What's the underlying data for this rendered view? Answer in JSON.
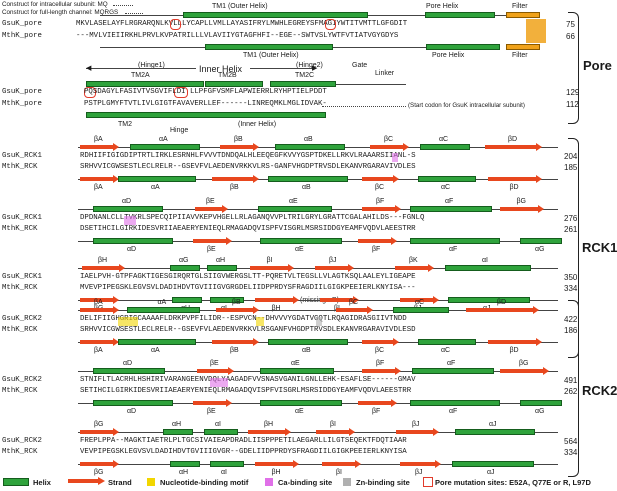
{
  "notes": {
    "intracellular": "Construct for intracellular subunit: MQ",
    "fulllength": "Construct for full-length channel: MQRGS"
  },
  "pore": {
    "labels": {
      "tm1_outer": "TM1 (Outer Helix)",
      "pore_helix": "Pore Helix",
      "filter": "Filter",
      "tm1_outer_b": "TM1 (Outer Helix)",
      "pore_helix_b": "Pore Helix",
      "filter_b": "Filter",
      "hinge1": "(Hinge1)",
      "inner_helix": "Inner Helix",
      "hinge2": "(Hinge2)",
      "gate": "Gate",
      "linker": "Linker",
      "tm2a": "TM2A",
      "tm2b": "TM2B",
      "tm2c": "TM2C",
      "tm2": "TM2",
      "hinge": "Hinge",
      "inner_helix_b": "(Inner Helix)",
      "start_codon": "(Start codon for GsuK intracellular subunit)",
      "section": "Pore"
    },
    "rows": [
      {
        "name": "GsuK_pore",
        "seq": "MKVLASELAYFLRGRARQNLKVLLLYCAPLLVMLLAYASIFRYLMWHLEGREYSFMAGIYWTITVMTTLGFGDIT",
        "num": "75"
      },
      {
        "name": "MthK_pore",
        "seq": "---MVLVIEIIRKHLPRVLKVPATRILLLVLAVIIYGTAGFHFI--EGE--SWTVSLYWTFVTIATVGYGDYS",
        "num": "66"
      },
      {
        "name": "GsuK_pore",
        "seq": "PQSDAGYLFASIVTVSGVIFLDI LLPFGFVSMFLAPWIERRLRYHPTIELPDDT",
        "num": "129"
      },
      {
        "name": "MthK_pore",
        "seq": "PSTPLGMYFTVTLIVLGIGTFAVAVERLLEF------LINREQMKLMGLIDVAK-",
        "num": "112"
      }
    ]
  },
  "rck1": {
    "section": "RCK1",
    "blocks": [
      {
        "rows": [
          {
            "name": "GsuK_RCK1",
            "seq": "RDHIIFIGIGDIPTRTLIRKLESRNHLFVVVTDNDQALHLEEQEGFKVVYGSPTDKELLRKVLRAAARSIIANL-S",
            "num": "204"
          },
          {
            "name": "MthK_RCK",
            "seq": "SRHVVICGWSESTLECLRELR--GSEVFVLAEDENVRKKVLRS-GANFVHGDPTRVSDLEKANVRGARAVIVDLES",
            "num": "185"
          }
        ],
        "top": [
          {
            "t": "βA"
          },
          {
            "t": "αA"
          },
          {
            "t": "βB"
          },
          {
            "t": "αB"
          },
          {
            "t": "βC"
          },
          {
            "t": "αC"
          },
          {
            "t": "βD"
          }
        ],
        "bot": [
          {
            "t": "βA"
          },
          {
            "t": "αA"
          },
          {
            "t": "βB"
          },
          {
            "t": "αB"
          },
          {
            "t": "βC"
          },
          {
            "t": "αC"
          },
          {
            "t": "βD"
          }
        ]
      },
      {
        "rows": [
          {
            "name": "GsuK_RCK1",
            "seq": "DPDNANLCLLTVKRLSPECQIPIIAVVKEPVHGELLRLAGANQVVPLTRILGRYLGRATTCGALAHILDS---FGNLQ",
            "num": "276"
          },
          {
            "name": "MthK_RCK",
            "seq": "DSETIHCILGIRKIDESVRIIAEAERYENIEQLRMAGADQVISPFVISGRLMSRSIDDGYEAMFVQDVLAEESTRR",
            "num": "261"
          }
        ],
        "top": [
          {
            "t": "αD"
          },
          {
            "t": "βE"
          },
          {
            "t": "αE"
          },
          {
            "t": "βF"
          },
          {
            "t": "αF"
          },
          {
            "t": "βG"
          }
        ],
        "bot": [
          {
            "t": "αD"
          },
          {
            "t": "βE"
          },
          {
            "t": "αE"
          },
          {
            "t": "βF"
          },
          {
            "t": "αF"
          },
          {
            "t": "αG"
          }
        ]
      },
      {
        "rows": [
          {
            "name": "GsuK_RCK1",
            "seq": "IAELPVH-GTPFAGKTIGESGIRQRTGLSIIGVWERGSLTT-PQRETVLTEGSLLVLAGTKSQLAALEYLIGEAPE",
            "num": "350"
          },
          {
            "name": "MthK_RCK",
            "seq": "MVEVPIPEGSKLEGVSVLDADIHDVTGVIIIGVGRGDELIIDPPRDYSFRAGDIILGIGKPEEIERLKNYISA---",
            "num": "334"
          }
        ],
        "top": [
          {
            "t": "βH"
          },
          {
            "t": "αG"
          },
          {
            "t": "αH"
          },
          {
            "t": "βI"
          },
          {
            "t": "βJ"
          },
          {
            "t": "βK"
          },
          {
            "t": "αI"
          }
        ],
        "bot": [
          {
            "t": "βG"
          },
          {
            "t": "αH"
          },
          {
            "t": "αI"
          },
          {
            "t": "βH"
          },
          {
            "t": "βI"
          },
          {
            "t": "βJ"
          },
          {
            "t": "αJ"
          }
        ]
      }
    ]
  },
  "rck2": {
    "section": "RCK2",
    "missing": "(missing αB)",
    "blocks": [
      {
        "rows": [
          {
            "name": "GsuK_RCK2",
            "seq": "DELIFIIGHGRIGCAAAAFLDRKPVPFILIDR--ESPVCN--DHVVVYGDATVGQTLRQAGIDRASGIIVTNDD",
            "num": "422"
          },
          {
            "name": "MthK_RCK",
            "seq": "SRHVVICGWSESTLECLRELR--GSEVFVLAEDENVRKKVLRSGANFVHGDPTRVSDLEKANVRGARAVIVDLESD",
            "num": "186"
          }
        ],
        "top": [
          {
            "t": "βA"
          },
          {
            "t": "αA"
          },
          {
            "t": "βB"
          },
          {
            "t": "βC"
          },
          {
            "t": "αC"
          },
          {
            "t": "βD"
          }
        ],
        "bot": [
          {
            "t": "βA"
          },
          {
            "t": "αA"
          },
          {
            "t": "βB"
          },
          {
            "t": "αB"
          },
          {
            "t": "βC"
          },
          {
            "t": "αC"
          },
          {
            "t": "βD"
          }
        ]
      },
      {
        "rows": [
          {
            "name": "GsuK_RCK2",
            "seq": "STNIFLTLACRHLHSHIRIVARANGEENVDQLYAAGADFVVSNASVGANILGNLLEHK-ESAFLSE------GMAV",
            "num": "491"
          },
          {
            "name": "MthK_RCK",
            "seq": "SETIHCILGIRKIDESVRIIAEAERYENIEQLRMAGADQVISPFVISGRLMSRSIDDGYEAMFVQDVLAEESTRR",
            "num": "262"
          }
        ],
        "top": [
          {
            "t": "αD"
          },
          {
            "t": "βE"
          },
          {
            "t": "αE"
          },
          {
            "t": "βF"
          },
          {
            "t": "αF"
          },
          {
            "t": "βG"
          }
        ],
        "bot": [
          {
            "t": "αD"
          },
          {
            "t": "βE"
          },
          {
            "t": "αE"
          },
          {
            "t": "βF"
          },
          {
            "t": "αF"
          },
          {
            "t": "αG"
          }
        ]
      },
      {
        "rows": [
          {
            "name": "GsuK_RCK2",
            "seq": "FREPLPPA--MAGKTIAETRLPLTGCSIVAIEAPDRADLIISPPPETILAEGARLLILGTSEQEKTFDQTIAAR",
            "num": "564"
          },
          {
            "name": "MthK_RCK",
            "seq": "VEVPIPEGSKLEGVSVLDADIHDVTGVIIIGVGR--GDELIIDPPRDYSFRAGDIILGIGKPEEIERLKNYISA",
            "num": "334"
          }
        ],
        "top": [
          {
            "t": "βG"
          },
          {
            "t": "αH"
          },
          {
            "t": "αI"
          },
          {
            "t": "βH"
          },
          {
            "t": "βI"
          },
          {
            "t": "βJ"
          },
          {
            "t": "αJ"
          }
        ],
        "bot": [
          {
            "t": "βG"
          },
          {
            "t": "αH"
          },
          {
            "t": "αI"
          },
          {
            "t": "βH"
          },
          {
            "t": "βI"
          },
          {
            "t": "βJ"
          },
          {
            "t": "αJ"
          }
        ]
      }
    ]
  },
  "legend": {
    "helix": "Helix",
    "strand": "Strand",
    "nucleotide": "Nucleotide-binding motif",
    "ca": "Ca-binding site",
    "zn": "Zn-binding site",
    "pore_mut": "Pore mutation sites: E52A, Q77E or R, L97D"
  },
  "colors": {
    "helix": "#2fa33c",
    "strand": "#e8471e",
    "nucleotide": "#f2d600",
    "ca": "#e070e8",
    "zn": "#b0b0b0",
    "mut": "#e23b2b",
    "filter": "#f0a21a"
  }
}
